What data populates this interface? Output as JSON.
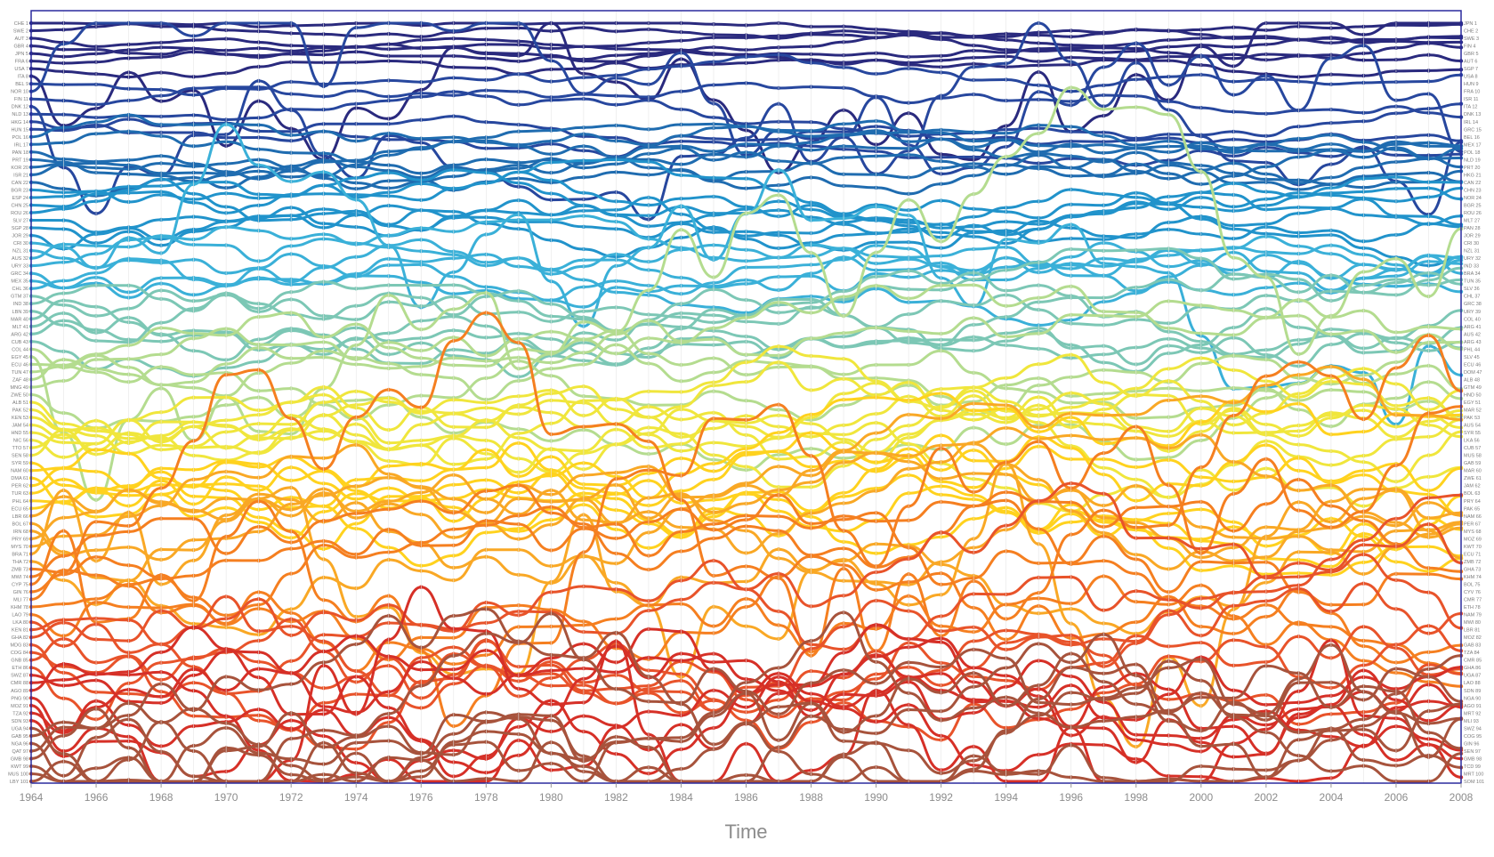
{
  "chart_data": {
    "type": "line",
    "subtype": "rank-bump",
    "xlabel": "Time",
    "x_ticks": [
      "1964",
      "1966",
      "1968",
      "1970",
      "1972",
      "1974",
      "1976",
      "1978",
      "1980",
      "1982",
      "1984",
      "1986",
      "1988",
      "1990",
      "1992",
      "1994",
      "1996",
      "1998",
      "2000",
      "2002",
      "2004",
      "2006",
      "2008"
    ],
    "xlim": [
      1964,
      2008
    ],
    "ylim": [
      1,
      101
    ],
    "y_inverted": true,
    "series_count": 101,
    "left_labels": [
      "CHE 1",
      "SWE 2",
      "AUT 3",
      "GBR 4",
      "JPN 5",
      "FRA 6",
      "USA 7",
      "ITA 8",
      "BEL 9",
      "NOR 10",
      "FIN 11",
      "DNK 12",
      "NLD 13",
      "HKG 14",
      "HUN 15",
      "POL 16",
      "IRL 17",
      "PAN 18",
      "PRT 19",
      "KOR 20",
      "ISR 21",
      "CAN 22",
      "BGR 23",
      "ESP 24",
      "CHN 25",
      "ROU 26",
      "SLV 27",
      "SGP 28",
      "JOR 29",
      "CRI 30",
      "NZL 31",
      "AUS 32",
      "URY 33",
      "GRC 34",
      "MEX 35",
      "CHL 36",
      "GTM 37",
      "IND 38",
      "LBN 39",
      "MAR 40",
      "MLT 41",
      "ARG 42",
      "CUB 43",
      "COL 44",
      "EGY 45",
      "ECU 46",
      "TUN 47",
      "ZAF 48",
      "MNG 49",
      "ZWE 50",
      "ALB 51",
      "PAK 52",
      "KEN 53",
      "JAM 54",
      "HND 55",
      "NIC 56",
      "TTO 57",
      "SEN 58",
      "SYR 59",
      "NAM 60",
      "DMA 61",
      "PER 62",
      "TUR 63",
      "PHL 64",
      "ECU 65",
      "LBR 66",
      "BOL 67",
      "IRN 68",
      "PRY 69",
      "MYS 70",
      "BRA 71",
      "THA 72",
      "ZMB 73",
      "MWI 74",
      "CYP 75",
      "GIN 76",
      "MLI 77",
      "KHM 78",
      "LAO 79",
      "LKA 80",
      "KEN 81",
      "GHA 82",
      "MDG 83",
      "COG 84",
      "GNB 85",
      "ETH 86",
      "SWZ 87",
      "CMR 88",
      "AGO 89",
      "PNG 90",
      "MOZ 91",
      "TZA 92",
      "SDN 93",
      "UGA 94",
      "GAB 95",
      "NGA 96",
      "QAT 97",
      "GMB 98",
      "KWT 99",
      "MUS 100",
      "LBY 101"
    ],
    "right_labels": [
      "JPN 1",
      "CHE 2",
      "SWE 3",
      "FIN 4",
      "GBR 5",
      "AUT 6",
      "SGP 7",
      "USA 8",
      "HUN 9",
      "FRA 10",
      "ISR 11",
      "ITA 12",
      "DNK 13",
      "IRL 14",
      "GRC 15",
      "BEL 16",
      "MEX 17",
      "POL 18",
      "NLD 19",
      "PRT 20",
      "HKG 21",
      "CAN 22",
      "CHN 23",
      "NOR 24",
      "BGR 25",
      "ROU 26",
      "MLT 27",
      "PAN 28",
      "JOR 29",
      "CRI 30",
      "NZL 31",
      "URY 32",
      "IND 33",
      "BRA 34",
      "TUN 35",
      "SLV 36",
      "CHL 37",
      "GRC 38",
      "URY 39",
      "COL 40",
      "ARG 41",
      "AUS 42",
      "ARG 43",
      "PHL 44",
      "SLV 45",
      "ECU 46",
      "DOM 47",
      "ALB 48",
      "GTM 49",
      "HND 50",
      "EGY 51",
      "MAR 52",
      "PAK 53",
      "AUS 54",
      "SYR 55",
      "LKA 56",
      "CUB 57",
      "MUS 58",
      "GAB 59",
      "MAR 60",
      "ZWE 61",
      "JAM 62",
      "BOL 63",
      "PRY 64",
      "PAK 65",
      "NAM 66",
      "PER 67",
      "MYS 68",
      "MOZ 69",
      "KWT 70",
      "ECU 71",
      "ZMB 72",
      "GHA 73",
      "KHM 74",
      "BOL 75",
      "CYV 76",
      "CMR 77",
      "ETH 78",
      "NAM 79",
      "MWI 80",
      "LBR 81",
      "MOZ 82",
      "GAB 83",
      "TZA 84",
      "CMR 85",
      "GHA 86",
      "UGA 87",
      "LAO 88",
      "SDN 89",
      "NGA 90",
      "AGO 91",
      "MRT 92",
      "MLI 93",
      "SWZ 94",
      "COG 95",
      "GIN 96",
      "SEN 97",
      "GMB 98",
      "TCD 99",
      "MRT 100",
      "SOM 101"
    ],
    "color_scale": [
      "#2a2a7e",
      "#27479e",
      "#1f6cb0",
      "#2193cb",
      "#3ab0d8",
      "#7cc7b5",
      "#b4dc8f",
      "#f0e63c",
      "#ffd21e",
      "#f9a825",
      "#f57f20",
      "#e8532a",
      "#d63027",
      "#a7533c"
    ],
    "highlight_colors": {
      "navy": "#2a2a7e",
      "blue": "#1f6cb0",
      "cyan": "#2193cb",
      "teal": "#7cc7b5",
      "yellow": "#f0e63c",
      "orange": "#f9a825",
      "red": "#d63027",
      "brown": "#a7533c"
    },
    "axis_color": "#2a2a9e",
    "grid": false
  }
}
